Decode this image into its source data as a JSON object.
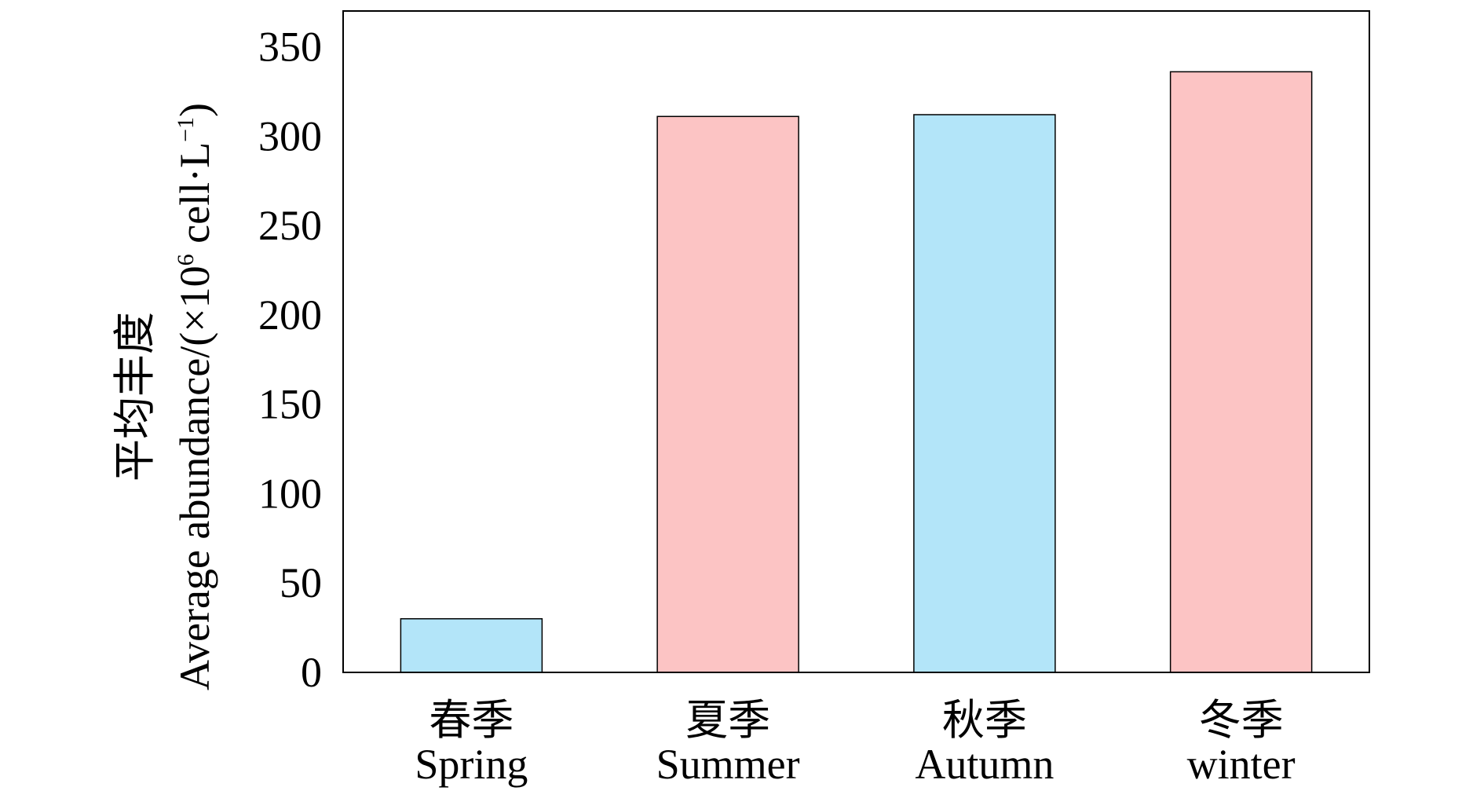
{
  "chart_data": {
    "type": "bar",
    "categories": [
      "春季 Spring",
      "夏季 Summer",
      "秋季 Autumn",
      "冬季 winter"
    ],
    "category_labels": [
      {
        "zh": "春季",
        "en": "Spring"
      },
      {
        "zh": "夏季",
        "en": "Summer"
      },
      {
        "zh": "秋季",
        "en": "Autumn"
      },
      {
        "zh": "冬季",
        "en": "winter"
      }
    ],
    "values": [
      30,
      311,
      312,
      336
    ],
    "bar_colors": [
      "#b3e5f9",
      "#fcc4c4",
      "#b3e5f9",
      "#fcc4c4"
    ],
    "title": "",
    "xlabel": "",
    "ylabel": {
      "zh": "平均丰度",
      "en_main": "Average abundance/(×10",
      "en_sup1": "6",
      "en_mid": " cell·L",
      "en_sup2": "−1",
      "en_end": ")"
    },
    "ylim": [
      0,
      370
    ],
    "yticks": [
      0,
      50,
      100,
      150,
      200,
      250,
      300,
      350
    ],
    "grid": false,
    "legend": "none"
  }
}
